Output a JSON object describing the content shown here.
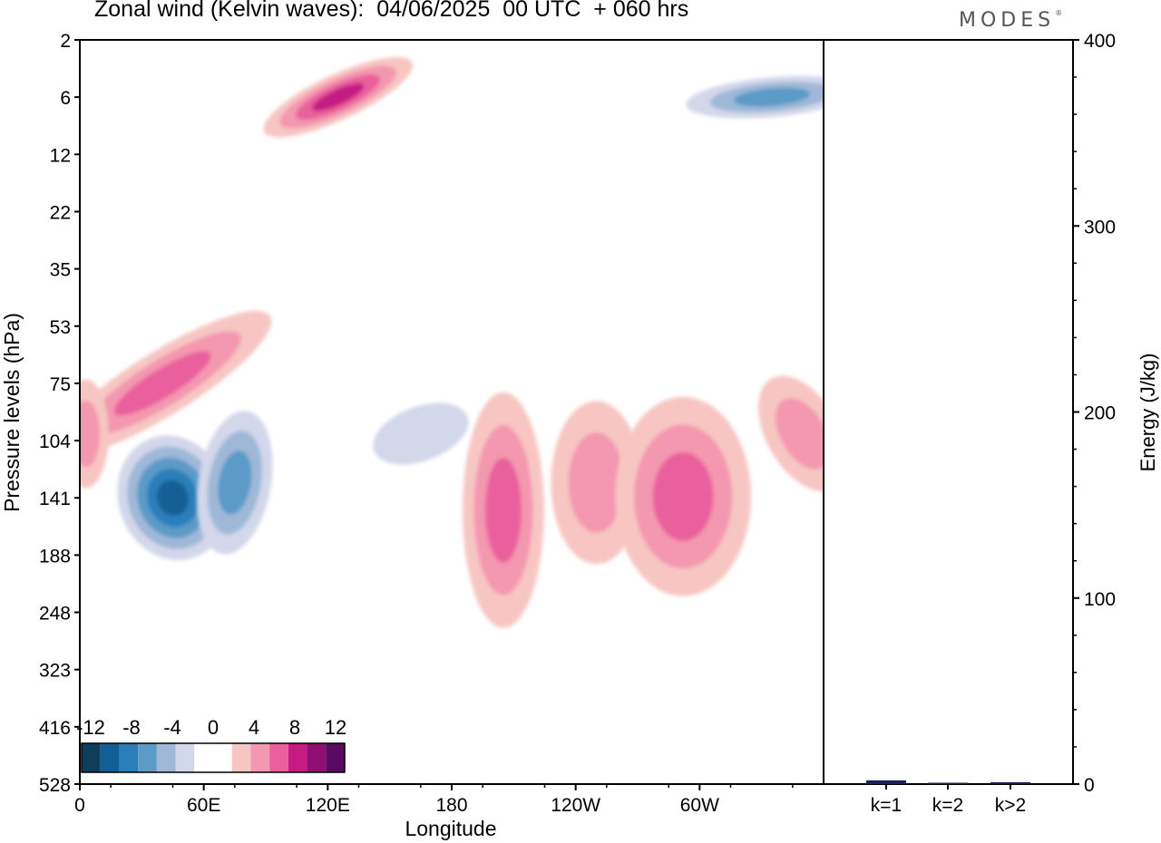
{
  "header": {
    "title": "Zonal wind (Kelvin waves):  04/06/2025  00 UTC  + 060 hrs",
    "brand": "MODES"
  },
  "colors": {
    "negative": [
      "#0f3d5c",
      "#125f95",
      "#2a7fba",
      "#5c9ac8",
      "#9fb8d8",
      "#d3d7ea"
    ],
    "zero": "#ffffff",
    "positive": [
      "#f7c6c2",
      "#f497b0",
      "#e9609c",
      "#c51b83",
      "#8e1075",
      "#5a0a63"
    ],
    "axis": "#000000"
  },
  "chart_data": [
    {
      "type": "heatmap",
      "title": "Zonal wind (Kelvin waves):  04/06/2025  00 UTC  + 060 hrs",
      "xlabel": "Longitude",
      "ylabel": "Pressure levels (hPa)",
      "x_ticks": [
        "0",
        "60E",
        "120E",
        "180",
        "120W",
        "60W"
      ],
      "y_ticks": [
        "2",
        "6",
        "12",
        "22",
        "35",
        "53",
        "75",
        "104",
        "141",
        "188",
        "248",
        "323",
        "416",
        "528"
      ],
      "y_scale": "log",
      "colorbar": {
        "levels": [
          "-12",
          "-8",
          "-4",
          "0",
          "4",
          "8",
          "12"
        ],
        "placement": "bottom-left"
      },
      "features": [
        {
          "name": "negative core",
          "lon": 45,
          "hPa": 141,
          "value": -10
        },
        {
          "name": "negative lobe",
          "lon": 75,
          "hPa": 130,
          "value": -6
        },
        {
          "name": "positive tilted band",
          "lon": 40,
          "hPa": 75,
          "value": 6
        },
        {
          "name": "positive west edge",
          "lon": 3,
          "hPa": 100,
          "value": 5
        },
        {
          "name": "positive 160W",
          "lon": 205,
          "hPa": 150,
          "value": 6
        },
        {
          "name": "positive 120W",
          "lon": 250,
          "hPa": 130,
          "value": 5
        },
        {
          "name": "positive 70W",
          "lon": 292,
          "hPa": 140,
          "value": 6
        },
        {
          "name": "positive east edge",
          "lon": 350,
          "hPa": 100,
          "value": 5
        },
        {
          "name": "negative 150E",
          "lon": 165,
          "hPa": 100,
          "value": -3
        },
        {
          "name": "upper positive 120E",
          "lon": 125,
          "hPa": 6,
          "value": 8
        },
        {
          "name": "upper negative 80W",
          "lon": 335,
          "hPa": 6,
          "value": -6
        }
      ]
    },
    {
      "type": "bar",
      "ylabel": "Energy (J/kg)",
      "categories": [
        "k=1",
        "k=2",
        "k>2"
      ],
      "values": [
        2,
        0,
        1
      ],
      "ylim": [
        0,
        400
      ],
      "y_ticks": [
        "0",
        "100",
        "200",
        "300",
        "400"
      ]
    }
  ]
}
